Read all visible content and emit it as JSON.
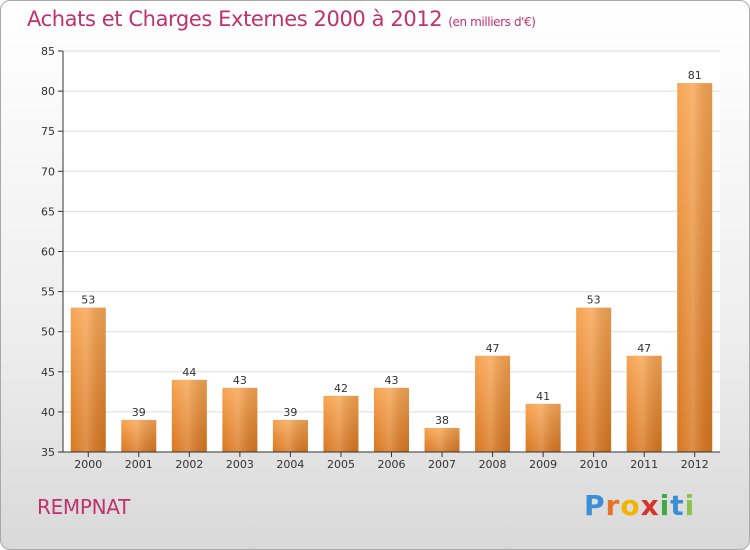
{
  "title": "Achats et Charges Externes 2000 à 2012",
  "title_unit": "(en milliers d'€)",
  "location": "REMPNAT",
  "logo": {
    "text": "Proxiti",
    "letters": [
      {
        "char": "P",
        "color": "#3a8fd6"
      },
      {
        "char": "r",
        "color": "#e7732b"
      },
      {
        "char": "o",
        "color": "#f2b400"
      },
      {
        "char": "x",
        "color": "#d6332b"
      },
      {
        "char": "i",
        "color": "#3fa845"
      },
      {
        "char": "t",
        "color": "#3a8fd6"
      },
      {
        "char": "i",
        "color": "#8bc34a"
      }
    ]
  },
  "chart_data": {
    "type": "bar",
    "categories": [
      "2000",
      "2001",
      "2002",
      "2003",
      "2004",
      "2005",
      "2006",
      "2007",
      "2008",
      "2009",
      "2010",
      "2011",
      "2012"
    ],
    "values": [
      53,
      39,
      44,
      43,
      39,
      42,
      43,
      38,
      47,
      41,
      53,
      47,
      81
    ],
    "data_labels": [
      "53",
      "39",
      "44",
      "43",
      "39",
      "42",
      "43",
      "38",
      "47",
      "41",
      "53",
      "47",
      "81"
    ],
    "ylim": [
      35,
      85
    ],
    "yticks": [
      35,
      40,
      45,
      50,
      55,
      60,
      65,
      70,
      75,
      80,
      85
    ],
    "grid": true,
    "bar_color": "#f0922e"
  }
}
